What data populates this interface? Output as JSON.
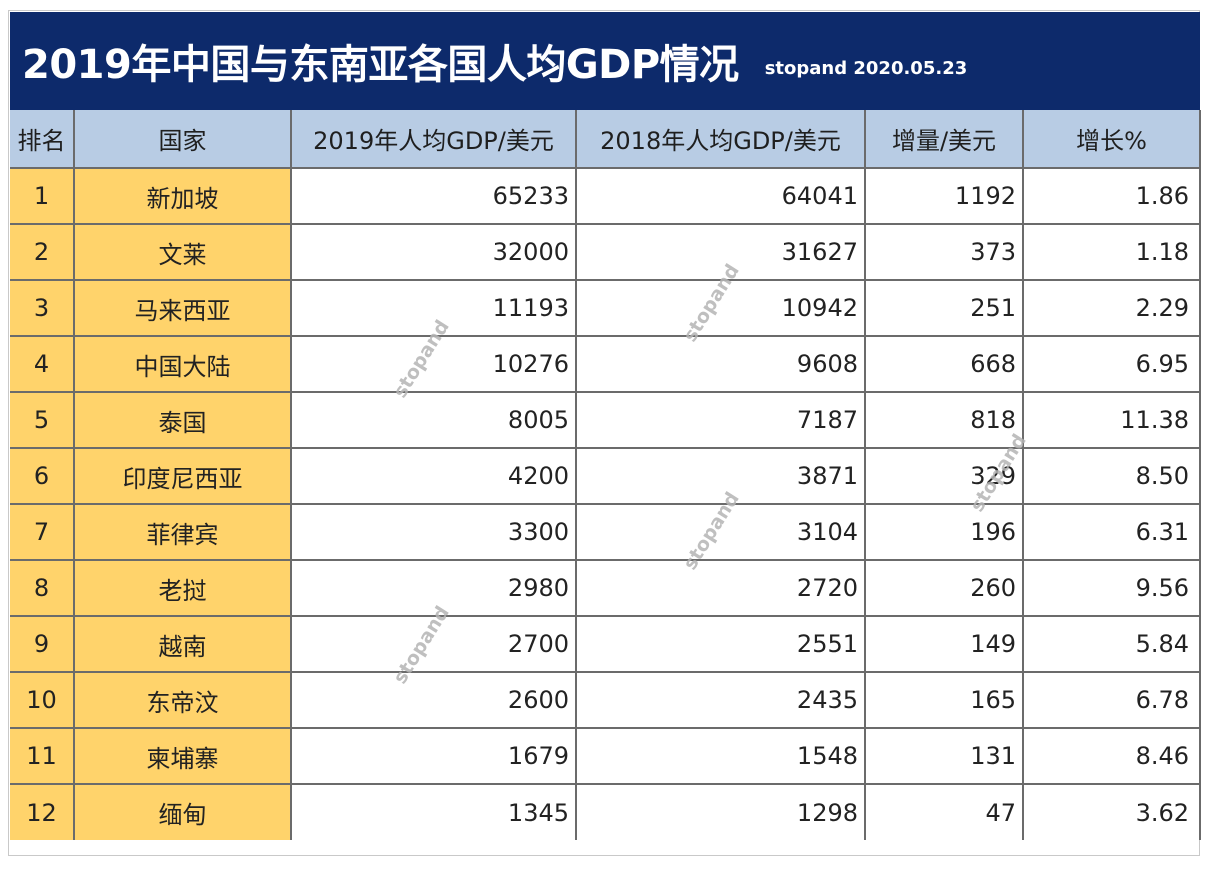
{
  "title": {
    "main": "2019年中国与东南亚各国人均GDP情况",
    "sub": "stopand 2020.05.23"
  },
  "watermark_text": "stopand",
  "colors": {
    "title_background": "#0d2a6b",
    "header_background": "#b8cce4",
    "rank_country_background": "#ffd36b",
    "value_background": "#ffffff"
  },
  "chart_data": {
    "type": "table",
    "columns": [
      "排名",
      "国家",
      "2019年人均GDP/美元",
      "2018年人均GDP/美元",
      "增量/美元",
      "增长%"
    ],
    "rows": [
      {
        "rank": "1",
        "country": "新加坡",
        "gdp_2019": "65233",
        "gdp_2018": "64041",
        "increase": "1192",
        "growth": "1.86"
      },
      {
        "rank": "2",
        "country": "文莱",
        "gdp_2019": "32000",
        "gdp_2018": "31627",
        "increase": "373",
        "growth": "1.18"
      },
      {
        "rank": "3",
        "country": "马来西亚",
        "gdp_2019": "11193",
        "gdp_2018": "10942",
        "increase": "251",
        "growth": "2.29"
      },
      {
        "rank": "4",
        "country": "中国大陆",
        "gdp_2019": "10276",
        "gdp_2018": "9608",
        "increase": "668",
        "growth": "6.95"
      },
      {
        "rank": "5",
        "country": "泰国",
        "gdp_2019": "8005",
        "gdp_2018": "7187",
        "increase": "818",
        "growth": "11.38"
      },
      {
        "rank": "6",
        "country": "印度尼西亚",
        "gdp_2019": "4200",
        "gdp_2018": "3871",
        "increase": "329",
        "growth": "8.50"
      },
      {
        "rank": "7",
        "country": "菲律宾",
        "gdp_2019": "3300",
        "gdp_2018": "3104",
        "increase": "196",
        "growth": "6.31"
      },
      {
        "rank": "8",
        "country": "老挝",
        "gdp_2019": "2980",
        "gdp_2018": "2720",
        "increase": "260",
        "growth": "9.56"
      },
      {
        "rank": "9",
        "country": "越南",
        "gdp_2019": "2700",
        "gdp_2018": "2551",
        "increase": "149",
        "growth": "5.84"
      },
      {
        "rank": "10",
        "country": "东帝汶",
        "gdp_2019": "2600",
        "gdp_2018": "2435",
        "increase": "165",
        "growth": "6.78"
      },
      {
        "rank": "11",
        "country": "柬埔寨",
        "gdp_2019": "1679",
        "gdp_2018": "1548",
        "increase": "131",
        "growth": "8.46"
      },
      {
        "rank": "12",
        "country": "缅甸",
        "gdp_2019": "1345",
        "gdp_2018": "1298",
        "increase": "47",
        "growth": "3.62"
      }
    ]
  }
}
